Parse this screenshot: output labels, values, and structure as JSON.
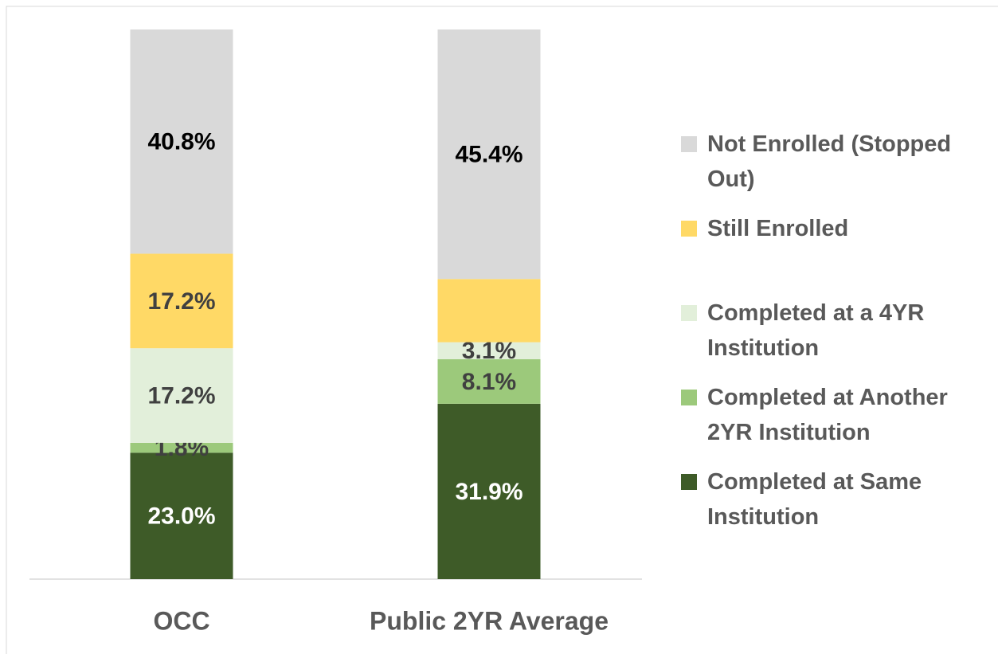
{
  "chart_data": {
    "type": "stacked_bar",
    "categories": [
      "OCC",
      "Public 2YR Average"
    ],
    "ylim": [
      0,
      100
    ],
    "series": [
      {
        "name": "Completed at Same Institution",
        "color": "#3e5b28",
        "label_color": "#ffffff",
        "values": [
          23.0,
          31.9
        ],
        "value_labels": [
          "23.0%",
          "31.9%"
        ]
      },
      {
        "name": "Completed at Another 2YR Institution",
        "color": "#9cc97b",
        "label_color": "#404040",
        "values": [
          1.8,
          8.1
        ],
        "value_labels": [
          "1.8%",
          "8.1%"
        ]
      },
      {
        "name": "Completed at a 4YR Institution",
        "color": "#e2efda",
        "label_color": "#404040",
        "values": [
          17.2,
          3.1
        ],
        "value_labels": [
          "17.2%",
          "3.1%"
        ]
      },
      {
        "name": "Still Enrolled",
        "color": "#ffd966",
        "label_color": "#404040",
        "values": [
          17.2,
          11.5
        ],
        "value_labels": [
          "17.2%",
          null
        ]
      },
      {
        "name": "Not Enrolled (Stopped Out)",
        "color": "#d9d9d9",
        "label_color": "#000000",
        "values": [
          40.8,
          45.4
        ],
        "value_labels": [
          "40.8%",
          "45.4%"
        ]
      }
    ],
    "legend": "right"
  }
}
